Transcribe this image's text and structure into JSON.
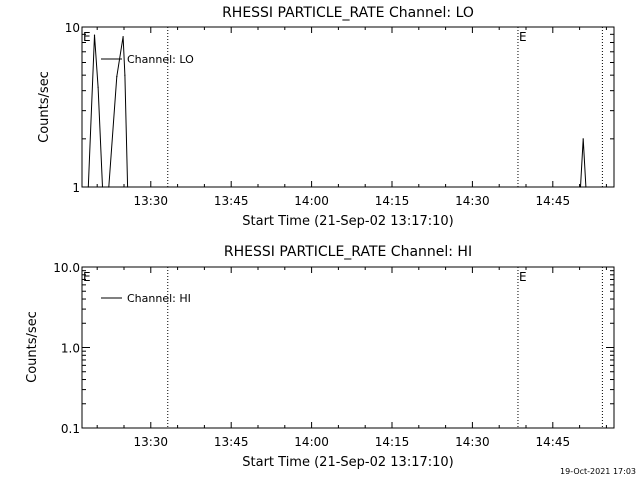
{
  "chart_data": [
    {
      "type": "line",
      "title": "RHESSI PARTICLE_RATE Channel: LO",
      "xlabel": "Start Time (21-Sep-02 13:17:10)",
      "ylabel": "Counts/sec",
      "y_scale": "log",
      "ylim": [
        1,
        10
      ],
      "y_tick_labels": [
        "1",
        "10"
      ],
      "xlim": [
        "13:17:10",
        "14:56:25"
      ],
      "x_tick_labels": [
        "13:30",
        "13:45",
        "14:00",
        "14:15",
        "14:30",
        "14:45"
      ],
      "grid": false,
      "legend": {
        "position": "top-left",
        "entries": [
          "Channel: LO"
        ]
      },
      "markers": [
        {
          "time": "13:33:10",
          "label": ""
        },
        {
          "time": "14:38:30",
          "label": "E"
        },
        {
          "time": "14:54:15",
          "label": ""
        }
      ],
      "start_marker_label": "E",
      "series": [
        {
          "name": "Channel: LO",
          "points": [
            [
              "13:18:20",
              1.0
            ],
            [
              "13:19:30",
              8.9
            ],
            [
              "13:20:10",
              4.2
            ],
            [
              "13:21:00",
              1.0
            ],
            [
              "13:22:10",
              1.0
            ],
            [
              "13:23:40",
              4.9
            ],
            [
              "13:24:50",
              8.7
            ],
            [
              "13:25:10",
              5.0
            ],
            [
              "13:25:40",
              1.0
            ],
            [
              "14:50:10",
              1.0
            ],
            [
              "14:50:40",
              2.0
            ],
            [
              "14:51:10",
              1.0
            ]
          ]
        }
      ]
    },
    {
      "type": "line",
      "title": "RHESSI PARTICLE_RATE Channel: HI",
      "xlabel": "Start Time (21-Sep-02 13:17:10)",
      "ylabel": "Counts/sec",
      "y_scale": "log",
      "ylim": [
        0.1,
        10
      ],
      "y_tick_labels": [
        "0.1",
        "1.0",
        "10.0"
      ],
      "xlim": [
        "13:17:10",
        "14:56:25"
      ],
      "x_tick_labels": [
        "13:30",
        "13:45",
        "14:00",
        "14:15",
        "14:30",
        "14:45"
      ],
      "grid": false,
      "legend": {
        "position": "top-left",
        "entries": [
          "Channel: HI"
        ]
      },
      "markers": [
        {
          "time": "13:33:10",
          "label": ""
        },
        {
          "time": "14:38:30",
          "label": "E"
        },
        {
          "time": "14:54:15",
          "label": ""
        }
      ],
      "start_marker_label": "E",
      "series": [
        {
          "name": "Channel: HI",
          "points": []
        }
      ]
    }
  ],
  "footer": {
    "timestamp": "19-Oct-2021 17:03"
  }
}
